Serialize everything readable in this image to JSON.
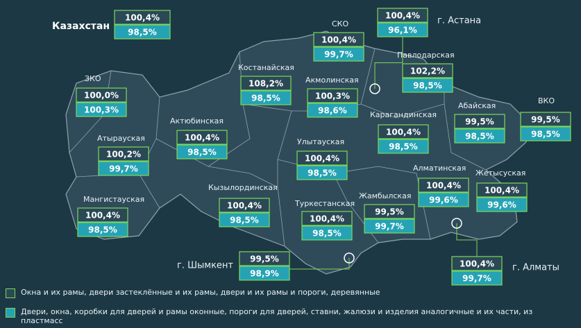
{
  "map": {
    "country": {
      "name": "Казахстан",
      "values": [
        "100,4%",
        "98,5%"
      ]
    },
    "regions": [
      {
        "name": "СКО",
        "values": [
          "100,4%",
          "99,7%"
        ]
      },
      {
        "name": "г. Астана",
        "values": [
          "100,4%",
          "96,1%"
        ]
      },
      {
        "name": "Павлодарская",
        "values": [
          "102,2%",
          "98,5%"
        ]
      },
      {
        "name": "ЗКО",
        "values": [
          "100,0%",
          "100,3%"
        ]
      },
      {
        "name": "Костанайская",
        "values": [
          "108,2%",
          "98,5%"
        ]
      },
      {
        "name": "Акмолинская",
        "values": [
          "100,3%",
          "98,6%"
        ]
      },
      {
        "name": "Абайская",
        "values": [
          "99,5%",
          "98,5%"
        ]
      },
      {
        "name": "ВКО",
        "values": [
          "99,5%",
          "98,5%"
        ]
      },
      {
        "name": "Карагандинская",
        "values": [
          "100,4%",
          "98,5%"
        ]
      },
      {
        "name": "Актюбинская",
        "values": [
          "100,4%",
          "98,5%"
        ]
      },
      {
        "name": "Атырауская",
        "values": [
          "100,2%",
          "99,7%"
        ]
      },
      {
        "name": "Улытауская",
        "values": [
          "100,4%",
          "98,5%"
        ]
      },
      {
        "name": "Алматинская",
        "values": [
          "100,4%",
          "99,6%"
        ]
      },
      {
        "name": "Жетысуская",
        "values": [
          "100,4%",
          "99,6%"
        ]
      },
      {
        "name": "Кызылординская",
        "values": [
          "100,4%",
          "98,5%"
        ]
      },
      {
        "name": "Мангистауская",
        "values": [
          "100,4%",
          "98,5%"
        ]
      },
      {
        "name": "Жамбылская",
        "values": [
          "99,5%",
          "99,7%"
        ]
      },
      {
        "name": "Туркестанская",
        "values": [
          "100,4%",
          "98,5%"
        ]
      },
      {
        "name": "г. Шымкент",
        "values": [
          "99,5%",
          "98,9%"
        ]
      },
      {
        "name": "г. Алматы",
        "values": [
          "100,4%",
          "99,7%"
        ]
      }
    ],
    "legend": [
      "Окна и их рамы, двери застеклённые и их рамы, двери и их рамы и пороги, деревянные",
      "Двери, окна, коробки для дверей и рамы оконные, пороги для дверей, ставни, жалюзи и изделия аналогичные и их части, из пластмасс"
    ]
  }
}
